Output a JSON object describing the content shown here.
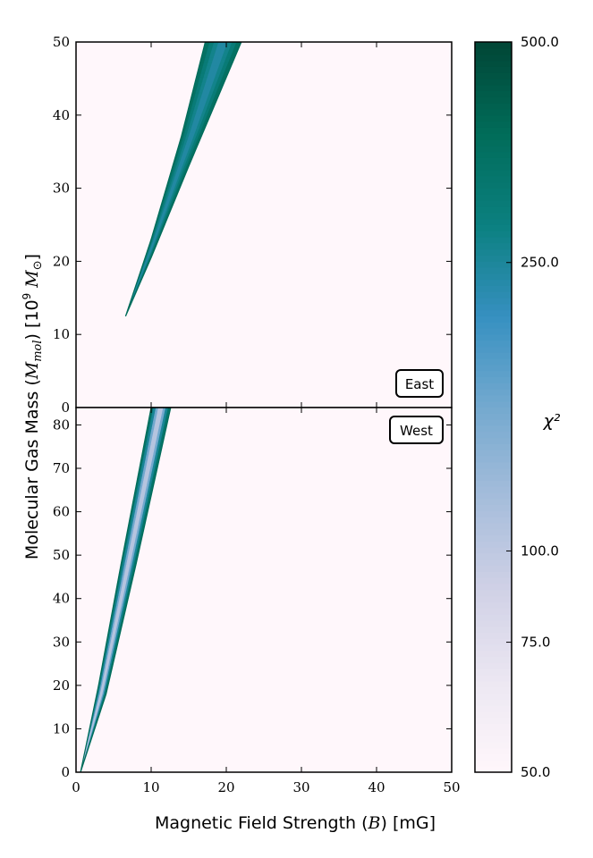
{
  "chart_data": {
    "type": "heatmap",
    "xlabel": "Magnetic Field Strength (B) [mG]",
    "ylabel": "Molecular Gas Mass (M_mol) [10^9 M_sun]",
    "xlim": [
      0,
      50
    ],
    "x_ticks": [
      "0",
      "10",
      "20",
      "30",
      "40",
      "50"
    ],
    "colorbar": {
      "label": "χ²",
      "range": [
        50,
        500
      ],
      "ticks": [
        "500.0",
        "250.0",
        "100.0",
        "75.0",
        "50.0"
      ],
      "tick_values": [
        500,
        250,
        100,
        75,
        50
      ],
      "colormap": [
        "#fff7fb",
        "#ece7f2",
        "#d0d1e6",
        "#a6bddb",
        "#74a9cf",
        "#3690c0",
        "#0b8080",
        "#016c59",
        "#014636"
      ]
    },
    "panels": [
      {
        "name": "East",
        "ylim": [
          0,
          50
        ],
        "y_ticks": [
          "0",
          "10",
          "20",
          "30",
          "40",
          "50"
        ],
        "low_chi2_region": {
          "tip": [
            6.6,
            12.5
          ],
          "upper_edge": [
            [
              6.6,
              12.5
            ],
            [
              10,
              23
            ],
            [
              14,
              37
            ],
            [
              17.2,
              50
            ]
          ],
          "lower_edge": [
            [
              6.6,
              12.5
            ],
            [
              10,
              20.5
            ],
            [
              15,
              33
            ],
            [
              22,
              50
            ]
          ],
          "chi2_range": [
            150,
            400
          ]
        }
      },
      {
        "name": "West",
        "ylim": [
          0,
          84
        ],
        "y_ticks": [
          "0",
          "10",
          "20",
          "30",
          "40",
          "50",
          "60",
          "70",
          "80"
        ],
        "low_chi2_region": {
          "tip": [
            0.6,
            0
          ],
          "upper_edge": [
            [
              0.6,
              0
            ],
            [
              3,
              20
            ],
            [
              6,
              48
            ],
            [
              10,
              84
            ]
          ],
          "lower_edge": [
            [
              0.6,
              0
            ],
            [
              4,
              18
            ],
            [
              8,
              48
            ],
            [
              12.6,
              84
            ]
          ],
          "chi2_range": [
            90,
            400
          ]
        }
      }
    ]
  }
}
